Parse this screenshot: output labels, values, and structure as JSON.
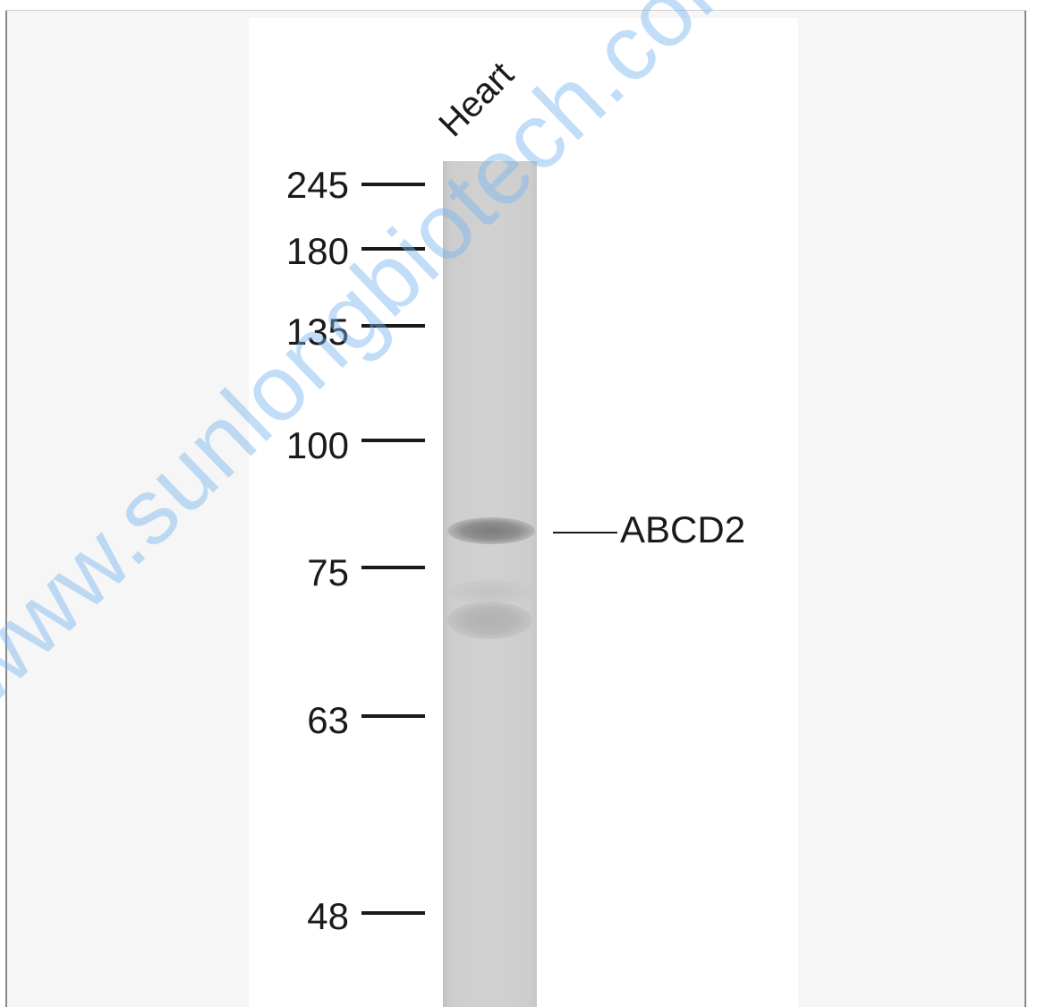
{
  "blot": {
    "lane_label": "Heart",
    "target_label": "ABCD2",
    "markers": [
      {
        "label": "245"
      },
      {
        "label": "180"
      },
      {
        "label": "135"
      },
      {
        "label": "100"
      },
      {
        "label": "75"
      },
      {
        "label": "63"
      },
      {
        "label": "48"
      }
    ]
  },
  "watermark": {
    "text": "www.sunlongbiotech.com"
  },
  "colors": {
    "frame_background": "#f5f6f5",
    "panel_background": "#ffffff",
    "lane": "#d1d1d1",
    "band": "#7c7c7c",
    "text": "#1a1a1a",
    "watermark": "#78b4f0"
  }
}
